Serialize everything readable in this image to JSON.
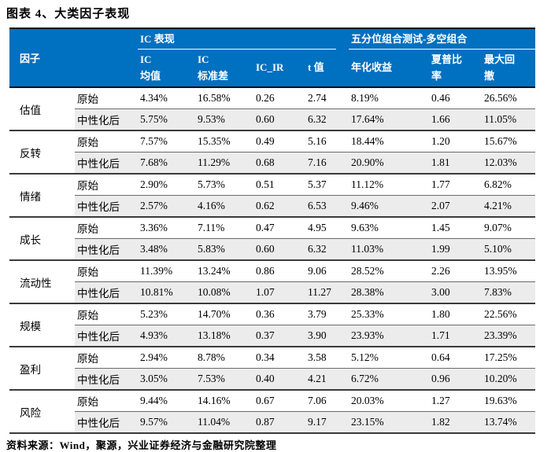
{
  "title": "图表 4、大类因子表现",
  "source_note": "资料来源：Wind，聚源，兴业证券经济与金融研究院整理",
  "colors": {
    "header_bg": "#0070C0",
    "header_text": "#FFFFFF",
    "stripe_bg": "#ECECEC",
    "group_rule": "#3B3B3B"
  },
  "table": {
    "corner_label": "因子",
    "groups": [
      {
        "label": "IC 表现"
      },
      {
        "label": "五分位组合测试-多空组合"
      }
    ],
    "columns": [
      {
        "lines": [
          "IC",
          "均值"
        ]
      },
      {
        "lines": [
          "IC",
          "标准差"
        ]
      },
      {
        "lines": [
          "IC_IR"
        ]
      },
      {
        "lines": [
          "t 值"
        ]
      },
      {
        "lines": [
          "年化收益"
        ]
      },
      {
        "lines": [
          "夏普比",
          "率"
        ]
      },
      {
        "lines": [
          "最大回",
          "撤"
        ]
      }
    ],
    "row_labels": [
      "原始",
      "中性化后"
    ],
    "factors": [
      {
        "name": "估值",
        "rows": [
          {
            "label": "原始",
            "values": [
              "4.34%",
              "16.58%",
              "0.26",
              "2.74",
              "8.19%",
              "0.46",
              "26.56%"
            ]
          },
          {
            "label": "中性化后",
            "values": [
              "5.75%",
              "9.53%",
              "0.60",
              "6.32",
              "17.64%",
              "1.66",
              "11.05%"
            ]
          }
        ]
      },
      {
        "name": "反转",
        "rows": [
          {
            "label": "原始",
            "values": [
              "7.57%",
              "15.35%",
              "0.49",
              "5.16",
              "18.44%",
              "1.20",
              "15.67%"
            ]
          },
          {
            "label": "中性化后",
            "values": [
              "7.68%",
              "11.29%",
              "0.68",
              "7.16",
              "20.90%",
              "1.81",
              "12.03%"
            ]
          }
        ]
      },
      {
        "name": "情绪",
        "rows": [
          {
            "label": "原始",
            "values": [
              "2.90%",
              "5.73%",
              "0.51",
              "5.37",
              "11.12%",
              "1.77",
              "6.82%"
            ]
          },
          {
            "label": "中性化后",
            "values": [
              "2.57%",
              "4.16%",
              "0.62",
              "6.53",
              "9.46%",
              "2.07",
              "4.21%"
            ]
          }
        ]
      },
      {
        "name": "成长",
        "rows": [
          {
            "label": "原始",
            "values": [
              "3.36%",
              "7.11%",
              "0.47",
              "4.95",
              "9.63%",
              "1.45",
              "9.07%"
            ]
          },
          {
            "label": "中性化后",
            "values": [
              "3.48%",
              "5.83%",
              "0.60",
              "6.32",
              "11.03%",
              "1.99",
              "5.10%"
            ]
          }
        ]
      },
      {
        "name": "流动性",
        "rows": [
          {
            "label": "原始",
            "values": [
              "11.39%",
              "13.24%",
              "0.86",
              "9.06",
              "28.52%",
              "2.26",
              "13.95%"
            ]
          },
          {
            "label": "中性化后",
            "values": [
              "10.81%",
              "10.08%",
              "1.07",
              "11.27",
              "28.38%",
              "3.00",
              "7.83%"
            ]
          }
        ]
      },
      {
        "name": "规模",
        "rows": [
          {
            "label": "原始",
            "values": [
              "5.23%",
              "14.70%",
              "0.36",
              "3.79",
              "25.33%",
              "1.80",
              "22.56%"
            ]
          },
          {
            "label": "中性化后",
            "values": [
              "4.93%",
              "13.18%",
              "0.37",
              "3.90",
              "23.93%",
              "1.71",
              "23.39%"
            ]
          }
        ]
      },
      {
        "name": "盈利",
        "rows": [
          {
            "label": "原始",
            "values": [
              "2.94%",
              "8.78%",
              "0.34",
              "3.58",
              "5.12%",
              "0.64",
              "17.25%"
            ]
          },
          {
            "label": "中性化后",
            "values": [
              "3.05%",
              "7.53%",
              "0.40",
              "4.21",
              "6.72%",
              "0.96",
              "10.20%"
            ]
          }
        ]
      },
      {
        "name": "风险",
        "rows": [
          {
            "label": "原始",
            "values": [
              "9.44%",
              "14.16%",
              "0.67",
              "7.06",
              "20.03%",
              "1.27",
              "19.63%"
            ]
          },
          {
            "label": "中性化后",
            "values": [
              "9.57%",
              "11.04%",
              "0.87",
              "9.17",
              "23.15%",
              "1.82",
              "13.74%"
            ]
          }
        ]
      }
    ]
  }
}
